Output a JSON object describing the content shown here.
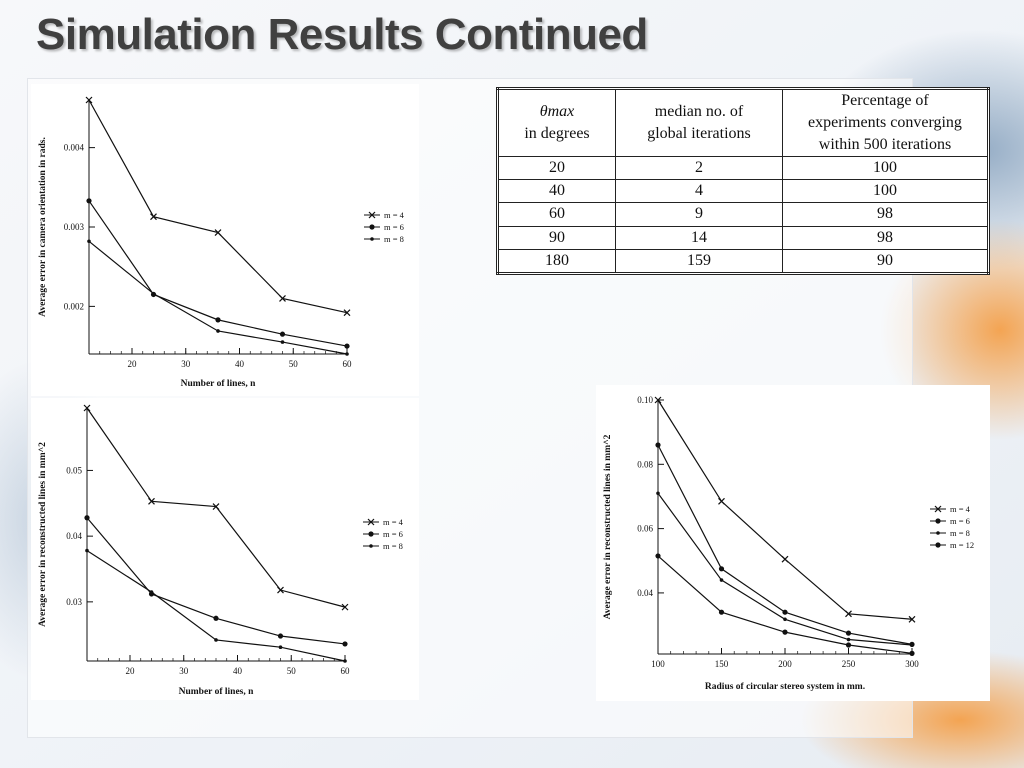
{
  "slide": {
    "title": "Simulation Results Continued"
  },
  "table": {
    "headers": [
      [
        "θmax",
        "in degrees"
      ],
      [
        "median no. of",
        "global iterations"
      ],
      [
        "Percentage of",
        "experiments converging",
        "within 500 iterations"
      ]
    ],
    "rows": [
      [
        "20",
        "2",
        "100"
      ],
      [
        "40",
        "4",
        "100"
      ],
      [
        "60",
        "9",
        "98"
      ],
      [
        "90",
        "14",
        "98"
      ],
      [
        "180",
        "159",
        "90"
      ]
    ]
  },
  "chart_data": [
    {
      "type": "line",
      "title": "",
      "xlabel": "Number of lines, n",
      "ylabel": "Average error in camera orientation in rads.",
      "xlim": [
        12,
        60
      ],
      "ylim": [
        0.0014,
        0.0046
      ],
      "x": [
        12,
        24,
        36,
        48,
        60
      ],
      "xticks": [
        "20",
        "30",
        "40",
        "50",
        "60"
      ],
      "xtick_values": [
        20,
        30,
        40,
        50,
        60
      ],
      "yticks": [
        "0.002",
        "0.003",
        "0.004"
      ],
      "ytick_values": [
        0.002,
        0.003,
        0.004
      ],
      "legend_position": "right",
      "series": [
        {
          "name": "m = 4",
          "marker": "x",
          "values": [
            0.0046,
            0.00313,
            0.00293,
            0.0021,
            0.00192
          ]
        },
        {
          "name": "m = 6",
          "marker": "dot",
          "values": [
            0.00333,
            0.00215,
            0.00183,
            0.00165,
            0.0015
          ]
        },
        {
          "name": "m = 8",
          "marker": "small-dot",
          "values": [
            0.00282,
            0.00216,
            0.00169,
            0.00155,
            0.0014
          ]
        }
      ]
    },
    {
      "type": "line",
      "title": "",
      "xlabel": "Number of lines, n",
      "ylabel": "Average error in reconstructed lines in mm^2",
      "xlim": [
        12,
        60
      ],
      "ylim": [
        0.021,
        0.0595
      ],
      "x": [
        12,
        24,
        36,
        48,
        60
      ],
      "xticks": [
        "20",
        "30",
        "40",
        "50",
        "60"
      ],
      "xtick_values": [
        20,
        30,
        40,
        50,
        60
      ],
      "yticks": [
        "0.03",
        "0.04",
        "0.05"
      ],
      "ytick_values": [
        0.03,
        0.04,
        0.05
      ],
      "legend_position": "right",
      "series": [
        {
          "name": "m = 4",
          "marker": "x",
          "values": [
            0.0595,
            0.0453,
            0.0445,
            0.0318,
            0.0292
          ]
        },
        {
          "name": "m = 6",
          "marker": "dot",
          "values": [
            0.0428,
            0.0312,
            0.0275,
            0.0248,
            0.0236
          ]
        },
        {
          "name": "m = 8",
          "marker": "small-dot",
          "values": [
            0.0378,
            0.0315,
            0.0242,
            0.0231,
            0.021
          ]
        }
      ]
    },
    {
      "type": "line",
      "title": "",
      "xlabel": "Radius of circular stereo system in mm.",
      "ylabel": "Average error in reconstructed lines in mm^2",
      "xlim": [
        100,
        300
      ],
      "ylim": [
        0.021,
        0.1
      ],
      "x": [
        100,
        150,
        200,
        250,
        300
      ],
      "xticks": [
        "100",
        "150",
        "200",
        "250",
        "300"
      ],
      "xtick_values": [
        100,
        150,
        200,
        250,
        300
      ],
      "yticks": [
        "0.04",
        "0.06",
        "0.08",
        "0.10"
      ],
      "ytick_values": [
        0.04,
        0.06,
        0.08,
        0.1
      ],
      "legend_position": "right",
      "series": [
        {
          "name": "m = 4",
          "marker": "x",
          "values": [
            0.1,
            0.0685,
            0.0505,
            0.0335,
            0.0318
          ]
        },
        {
          "name": "m = 6",
          "marker": "dot",
          "values": [
            0.086,
            0.0475,
            0.034,
            0.0275,
            0.024
          ]
        },
        {
          "name": "m = 8",
          "marker": "small-dot",
          "values": [
            0.071,
            0.044,
            0.0318,
            0.0255,
            0.0238
          ]
        },
        {
          "name": "m = 12",
          "marker": "dot",
          "values": [
            0.0515,
            0.034,
            0.0278,
            0.0238,
            0.0212
          ]
        }
      ]
    }
  ]
}
